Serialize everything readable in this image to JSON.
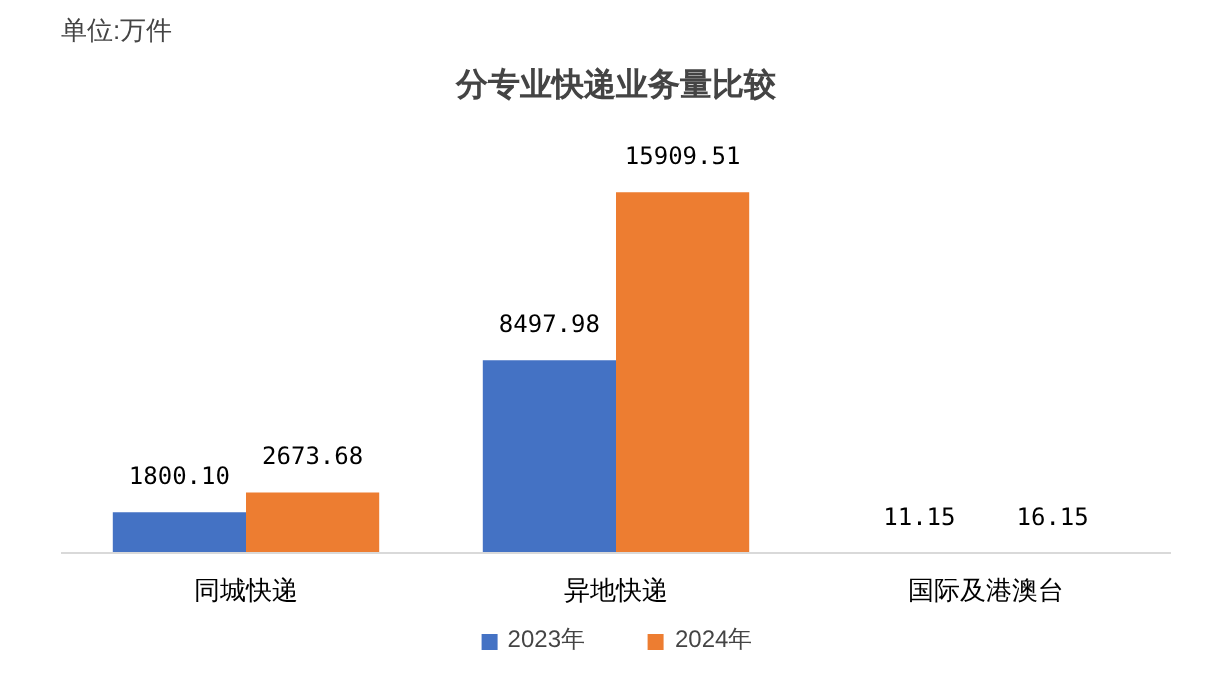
{
  "chart_data": {
    "type": "bar",
    "title": "分专业快递业务量比较",
    "annotations": [
      "单位:万件"
    ],
    "categories": [
      "同城快递",
      "异地快递",
      "国际及港澳台"
    ],
    "series": [
      {
        "name": "2023年",
        "color": "#4472c4",
        "values": [
          1800.1,
          8497.98,
          11.15
        ],
        "value_labels": [
          "1800.10",
          "8497.98",
          "11.15"
        ]
      },
      {
        "name": "2024年",
        "color": "#ed7d31",
        "values": [
          2673.68,
          15909.51,
          16.15
        ],
        "value_labels": [
          "2673.68",
          "15909.51",
          "16.15"
        ]
      }
    ],
    "legend": "bottom"
  }
}
